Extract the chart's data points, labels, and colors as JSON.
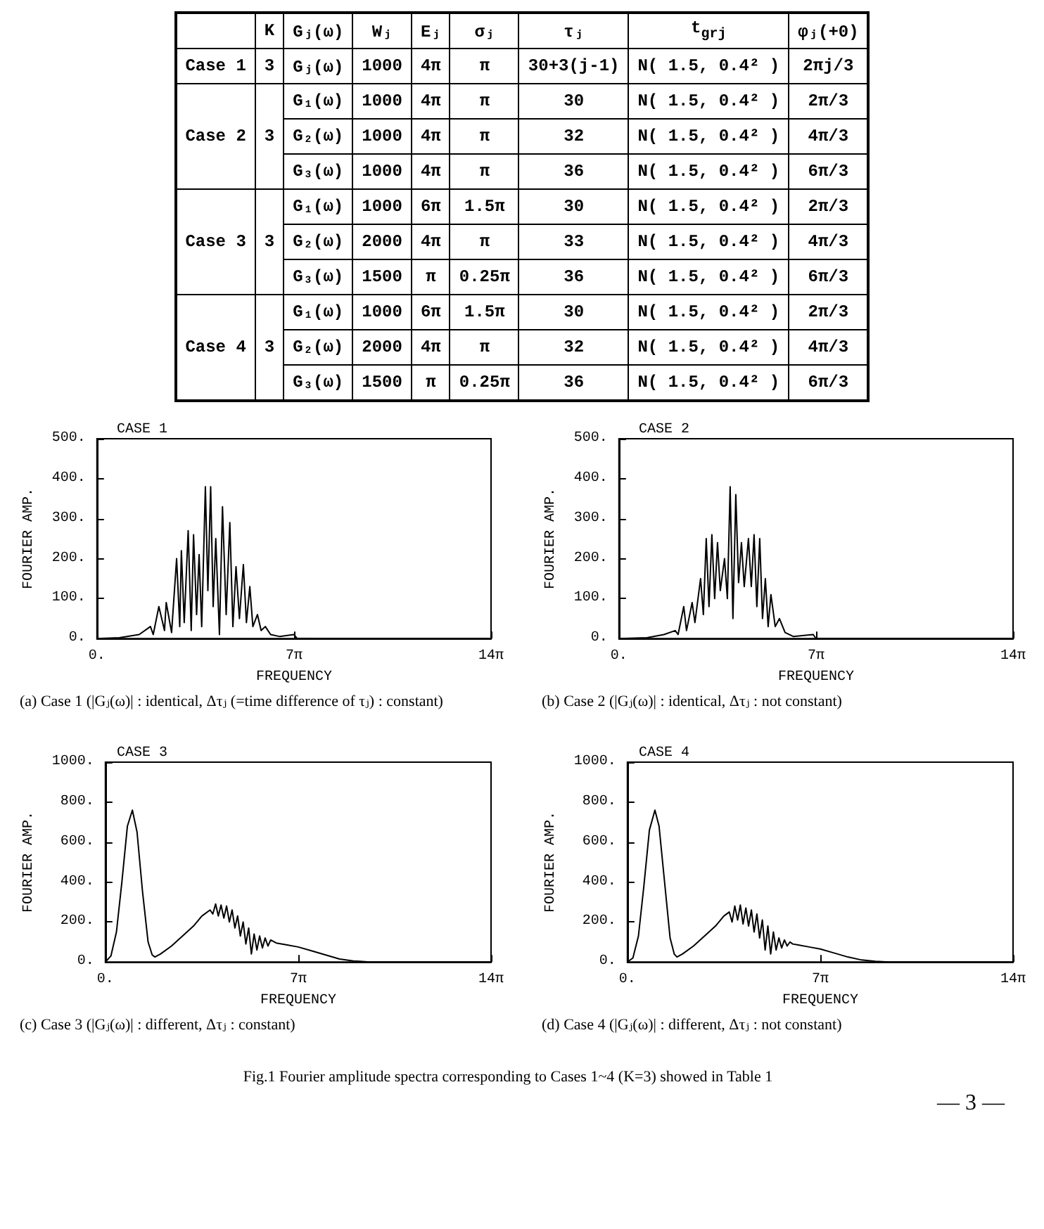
{
  "chart_data": [
    {
      "type": "other",
      "categories": [
        null,
        "K",
        "Gⱼ(ω)",
        "Wⱼ",
        "Eⱼ",
        "σⱼ",
        "τⱼ",
        "t$_{grj}$",
        "φⱼ(+0)"
      ],
      "cell_labels": [
        [
          "Case 1",
          "3",
          "Gⱼ(ω)",
          "1000",
          "4π",
          "π",
          "30+3(j-1)",
          "N( 1.5, 0.4² )",
          "2πj/3"
        ],
        [
          "Case 2",
          "3",
          "G₁(ω)",
          "1000",
          "4π",
          "π",
          "30",
          "N( 1.5, 0.4² )",
          "2π/3"
        ],
        [
          null,
          null,
          "G₂(ω)",
          "1000",
          "4π",
          "π",
          "32",
          "N( 1.5, 0.4² )",
          "4π/3"
        ],
        [
          null,
          null,
          "G₃(ω)",
          "1000",
          "4π",
          "π",
          "36",
          "N( 1.5, 0.4² )",
          "6π/3"
        ],
        [
          "Case 3",
          "3",
          "G₁(ω)",
          "1000",
          "6π",
          "1.5π",
          "30",
          "N( 1.5, 0.4² )",
          "2π/3"
        ],
        [
          null,
          null,
          "G₂(ω)",
          "2000",
          "4π",
          "π",
          "33",
          "N( 1.5, 0.4² )",
          "4π/3"
        ],
        [
          null,
          null,
          "G₃(ω)",
          "1500",
          "π",
          "0.25π",
          "36",
          "N( 1.5, 0.4² )",
          "6π/3"
        ],
        [
          "Case 4",
          "3",
          "G₁(ω)",
          "1000",
          "6π",
          "1.5π",
          "30",
          "N( 1.5, 0.4² )",
          "2π/3"
        ],
        [
          null,
          null,
          "G₂(ω)",
          "2000",
          "4π",
          "π",
          "32",
          "N( 1.5, 0.4² )",
          "4π/3"
        ],
        [
          null,
          null,
          "G₃(ω)",
          "1500",
          "π",
          "0.25π",
          "36",
          "N( 1.5, 0.4² )",
          "6π/3"
        ]
      ]
    },
    {
      "type": "line",
      "title": "CASE 1",
      "xlabel": "FREQUENCY",
      "ylabel": "FOURIER AMP.",
      "color": "#000000",
      "marker": "none",
      "x": [
        0,
        2.51,
        4.71,
        5.97,
        6.28,
        6.91,
        7.54,
        7.73,
        8.33,
        8.89,
        9.24,
        9.42,
        9.74,
        10.18,
        10.52,
        10.78,
        11.12,
        11.4,
        11.69,
        12.1,
        12.38,
        12.69,
        12.97,
        13.26,
        13.67,
        14.01,
        14.42,
        14.83,
        15.17,
        15.52,
        15.9,
        16.34,
        16.68,
        17.06,
        17.4,
        17.91,
        18.32,
        18.79,
        19.38,
        20.42,
        21.99,
        22.31,
        24.5,
        43.98
      ],
      "values": [
        0,
        2,
        10,
        30,
        10,
        80,
        20,
        90,
        15,
        200,
        30,
        220,
        40,
        270,
        20,
        260,
        60,
        210,
        30,
        380,
        120,
        380,
        80,
        250,
        10,
        330,
        60,
        290,
        30,
        180,
        50,
        185,
        40,
        130,
        30,
        60,
        20,
        30,
        10,
        5,
        10,
        1,
        0,
        0
      ],
      "xlim": [
        0,
        43.98
      ],
      "xticks": [
        {
          "value": 0,
          "label": "0."
        },
        {
          "value": 21.99,
          "label": "7π"
        },
        {
          "value": 43.98,
          "label": "14π"
        }
      ],
      "ylim": [
        0,
        500
      ],
      "yticks": [
        {
          "value": 0,
          "label": "0."
        },
        {
          "value": 100,
          "label": "100."
        },
        {
          "value": 200,
          "label": "200."
        },
        {
          "value": 300,
          "label": "300."
        },
        {
          "value": 400,
          "label": "400."
        },
        {
          "value": 500,
          "label": "500."
        }
      ],
      "annotations": [
        "(a) Case 1 (|Gⱼ(ω)| : identical, Δτⱼ (=time difference of τⱼ) : constant)"
      ]
    },
    {
      "type": "line",
      "title": "CASE 2",
      "xlabel": "FREQUENCY",
      "ylabel": "FOURIER AMP.",
      "color": "#000000",
      "marker": "none",
      "x": [
        0,
        3.14,
        5.03,
        6.28,
        6.6,
        7.23,
        7.54,
        8.17,
        8.48,
        9.11,
        9.42,
        9.74,
        10.05,
        10.37,
        10.68,
        11.0,
        11.31,
        11.78,
        12.1,
        12.41,
        12.72,
        13.04,
        13.35,
        13.67,
        13.98,
        14.45,
        14.77,
        15.08,
        15.39,
        15.71,
        16.02,
        16.34,
        16.65,
        16.96,
        17.44,
        17.91,
        18.54,
        19.48,
        21.68,
        21.99,
        23.88,
        43.98
      ],
      "values": [
        0,
        2,
        10,
        20,
        10,
        80,
        20,
        90,
        40,
        150,
        60,
        250,
        80,
        260,
        100,
        240,
        120,
        200,
        100,
        380,
        50,
        360,
        140,
        240,
        130,
        250,
        130,
        260,
        80,
        250,
        50,
        150,
        30,
        110,
        30,
        50,
        15,
        5,
        10,
        0,
        0,
        0
      ],
      "xlim": [
        0,
        43.98
      ],
      "xticks": [
        {
          "value": 0,
          "label": "0."
        },
        {
          "value": 21.99,
          "label": "7π"
        },
        {
          "value": 43.98,
          "label": "14π"
        }
      ],
      "ylim": [
        0,
        500
      ],
      "yticks": [
        {
          "value": 0,
          "label": "0."
        },
        {
          "value": 100,
          "label": "100."
        },
        {
          "value": 200,
          "label": "200."
        },
        {
          "value": 300,
          "label": "300."
        },
        {
          "value": 400,
          "label": "400."
        },
        {
          "value": 500,
          "label": "500."
        }
      ],
      "annotations": [
        "(b) Case 2 (|Gⱼ(ω)| : identical, Δτⱼ : not constant)"
      ]
    },
    {
      "type": "line",
      "title": "CASE 3",
      "xlabel": "FREQUENCY",
      "ylabel": "FOURIER AMP.",
      "color": "#000000",
      "marker": "none",
      "x": [
        0,
        0.63,
        1.26,
        1.88,
        2.51,
        3.08,
        3.61,
        4.24,
        4.87,
        5.34,
        5.65,
        6.28,
        7.54,
        8.8,
        10.05,
        11.0,
        11.94,
        12.25,
        12.57,
        12.88,
        13.19,
        13.51,
        13.82,
        14.14,
        14.45,
        14.77,
        15.08,
        15.39,
        15.71,
        16.02,
        16.34,
        16.65,
        16.96,
        17.28,
        17.59,
        17.91,
        18.22,
        18.54,
        18.85,
        19.48,
        20.73,
        21.99,
        23.56,
        25.13,
        26.7,
        28.27,
        29.85,
        31.42,
        43.98
      ],
      "values": [
        0,
        30,
        150,
        400,
        680,
        760,
        650,
        350,
        100,
        35,
        25,
        40,
        80,
        130,
        180,
        230,
        260,
        240,
        290,
        230,
        285,
        220,
        280,
        200,
        260,
        170,
        230,
        130,
        200,
        90,
        170,
        40,
        140,
        60,
        130,
        70,
        120,
        80,
        110,
        95,
        85,
        75,
        55,
        35,
        15,
        5,
        1,
        0,
        0
      ],
      "xlim": [
        0,
        43.98
      ],
      "xticks": [
        {
          "value": 0,
          "label": "0."
        },
        {
          "value": 21.99,
          "label": "7π"
        },
        {
          "value": 43.98,
          "label": "14π"
        }
      ],
      "ylim": [
        0,
        1000
      ],
      "yticks": [
        {
          "value": 0,
          "label": "0."
        },
        {
          "value": 200,
          "label": "200."
        },
        {
          "value": 400,
          "label": "400."
        },
        {
          "value": 600,
          "label": "600."
        },
        {
          "value": 800,
          "label": "800."
        },
        {
          "value": 1000,
          "label": "1000."
        }
      ],
      "annotations": [
        "(c) Case 3 (|Gⱼ(ω)| : different, Δτⱼ : constant)"
      ]
    },
    {
      "type": "line",
      "title": "CASE 4",
      "xlabel": "FREQUENCY",
      "ylabel": "FOURIER AMP.",
      "color": "#000000",
      "marker": "none",
      "x": [
        0,
        0.63,
        1.26,
        1.88,
        2.51,
        3.14,
        3.61,
        4.24,
        4.87,
        5.34,
        5.65,
        6.28,
        7.54,
        8.8,
        10.05,
        11.0,
        11.62,
        11.94,
        12.25,
        12.57,
        12.88,
        13.19,
        13.51,
        13.82,
        14.14,
        14.45,
        14.77,
        15.08,
        15.39,
        15.71,
        16.02,
        16.34,
        16.65,
        16.96,
        17.28,
        17.59,
        17.91,
        18.22,
        18.54,
        18.85,
        19.48,
        20.73,
        21.99,
        23.56,
        25.13,
        26.7,
        28.27,
        29.85,
        31.42,
        43.98
      ],
      "values": [
        0,
        20,
        130,
        380,
        660,
        760,
        680,
        400,
        120,
        40,
        25,
        40,
        80,
        130,
        180,
        230,
        250,
        200,
        280,
        210,
        285,
        190,
        270,
        180,
        260,
        150,
        240,
        120,
        210,
        60,
        180,
        40,
        150,
        60,
        120,
        70,
        110,
        80,
        100,
        90,
        85,
        75,
        65,
        45,
        25,
        10,
        3,
        0,
        0,
        0
      ],
      "xlim": [
        0,
        43.98
      ],
      "xticks": [
        {
          "value": 0,
          "label": "0."
        },
        {
          "value": 21.99,
          "label": "7π"
        },
        {
          "value": 43.98,
          "label": "14π"
        }
      ],
      "ylim": [
        0,
        1000
      ],
      "yticks": [
        {
          "value": 0,
          "label": "0."
        },
        {
          "value": 200,
          "label": "200."
        },
        {
          "value": 400,
          "label": "400."
        },
        {
          "value": 600,
          "label": "600."
        },
        {
          "value": 800,
          "label": "800."
        },
        {
          "value": 1000,
          "label": "1000."
        }
      ],
      "annotations": [
        "(d) Case 4 (|Gⱼ(ω)| : different, Δτⱼ : not constant)",
        "Fig.1 Fourier amplitude spectra corresponding to Cases 1~4 (K=3) showed in Table 1",
        "— 3 —"
      ]
    }
  ]
}
